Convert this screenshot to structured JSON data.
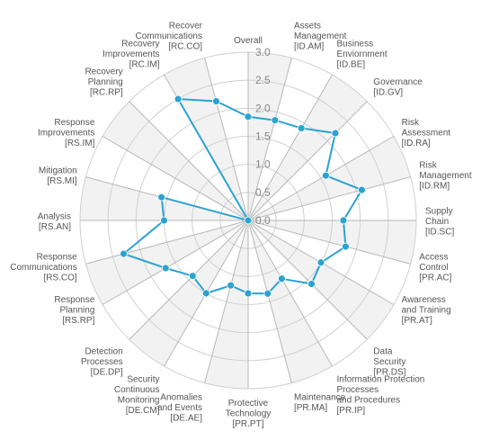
{
  "chart_data": {
    "type": "radar",
    "ylim": [
      0,
      3
    ],
    "yticks": [
      "0.0",
      "0.5",
      "1.0",
      "1.5",
      "2.0",
      "2.5",
      "3.0"
    ],
    "categories": [
      [
        "Overall"
      ],
      [
        "Assets",
        "Management",
        "[ID.AM]"
      ],
      [
        "Business",
        "Enviornment",
        "[ID.BE]"
      ],
      [
        "Governance",
        "[ID.GV]"
      ],
      [
        "Risk",
        "Assessment",
        "[ID.RA]"
      ],
      [
        "Risk",
        "Management",
        "[ID.RM]"
      ],
      [
        "Supply",
        "Chain",
        "[ID.SC]"
      ],
      [
        "Access",
        "Control",
        "[PR.AC]"
      ],
      [
        "Awareness",
        "and Training",
        "[PR.AT]"
      ],
      [
        "Data",
        "Security",
        "[PR.DS]"
      ],
      [
        "Information Protection",
        "Processes",
        "and Procedures",
        "[PR.IP]"
      ],
      [
        "Maintenance",
        "[PR.MA]"
      ],
      [
        "Protective",
        "Technology",
        "[PR.PT]"
      ],
      [
        "Anomalies",
        "and Events",
        "[DE.AE]"
      ],
      [
        "Security",
        "Continuous",
        "Monitoring",
        "[DE.CM]"
      ],
      [
        "Detection",
        "Processes",
        "[DE.DP]"
      ],
      [
        "Response",
        "Planning",
        "[RS.RP]"
      ],
      [
        "Response",
        "Communications",
        "[RS.CO]"
      ],
      [
        "Analysis",
        "[RS.AN]"
      ],
      [
        "Mitigation",
        "[RS.MI]"
      ],
      [
        "Response",
        "Improvements",
        "[RS.IM]"
      ],
      [
        "Recovery",
        "Planning",
        "[RC.RP]"
      ],
      [
        "Recovery",
        "Improvements",
        "[RC.IM]"
      ],
      [
        "Recover",
        "Communications",
        "[RC.CO]"
      ]
    ],
    "series": [
      {
        "values": [
          1.85,
          1.85,
          1.9,
          2.2,
          1.6,
          2.1,
          1.7,
          1.8,
          1.5,
          1.6,
          1.2,
          1.35,
          1.3,
          1.2,
          1.5,
          1.4,
          1.7,
          2.3,
          1.5,
          1.6,
          0.0,
          0.0,
          2.5,
          2.2
        ],
        "color": "#2ba3d0"
      }
    ],
    "grid": true,
    "band_colors": [
      "#f2f2f2",
      "#ffffff"
    ],
    "gridline_color": "#d0d0d0"
  }
}
